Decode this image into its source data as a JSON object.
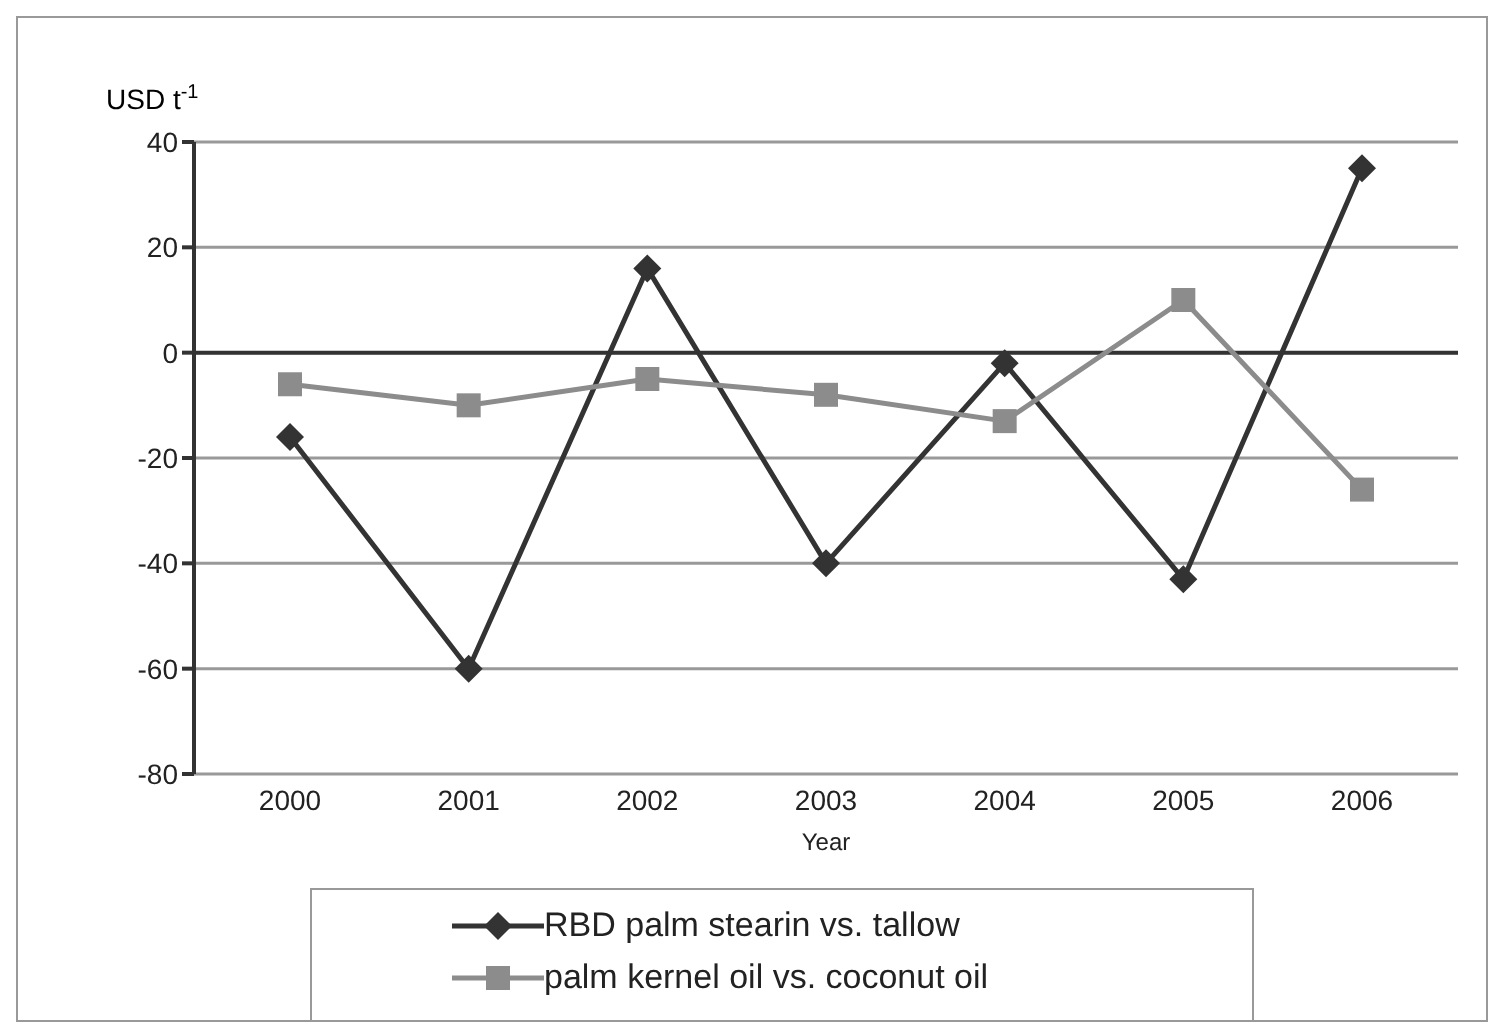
{
  "chart_data": {
    "type": "line",
    "ylabel": "USD t$^{-1}$",
    "xlabel": "Year",
    "categories": [
      "2000",
      "2001",
      "2002",
      "2003",
      "2004",
      "2005",
      "2006"
    ],
    "series": [
      {
        "name": "RBD palm stearin vs. tallow",
        "color": "#333333",
        "marker": "diamond",
        "values": [
          -16,
          -60,
          16,
          -40,
          -2,
          -43,
          35
        ]
      },
      {
        "name": "palm kernel oil vs. coconut oil",
        "color": "#8c8c8c",
        "marker": "square",
        "values": [
          -6,
          -10,
          -5,
          -8,
          -13,
          10,
          -26
        ]
      }
    ],
    "ylim": [
      -80,
      40
    ],
    "yticks": [
      -80,
      -60,
      -40,
      -20,
      0,
      20,
      40
    ],
    "grid": "y",
    "legend": "bottom",
    "line_style": "solid"
  }
}
